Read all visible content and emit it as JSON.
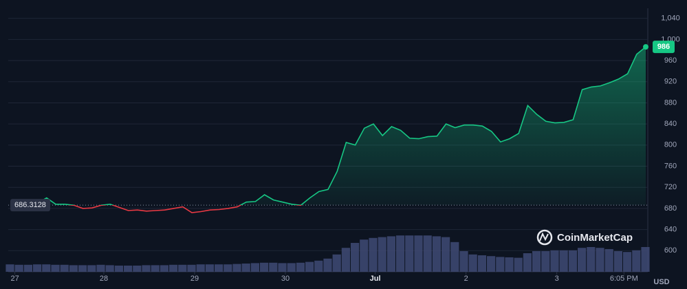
{
  "chart_data": {
    "type": "line",
    "xlim": [
      0,
      70
    ],
    "xticks": [
      {
        "value": 0.5,
        "label": "27"
      },
      {
        "value": 10.3,
        "label": "28"
      },
      {
        "value": 20.3,
        "label": "29"
      },
      {
        "value": 30.3,
        "label": "30"
      },
      {
        "value": 40.2,
        "label": "Jul"
      },
      {
        "value": 50.2,
        "label": "2"
      },
      {
        "value": 60.2,
        "label": "3"
      },
      {
        "value": 67.6,
        "label": "6:05 PM"
      }
    ],
    "ylim": [
      560,
      1050
    ],
    "yticks": [
      600,
      640,
      680,
      720,
      760,
      800,
      840,
      880,
      920,
      960,
      {
        "value": 1000,
        "label": "1,000"
      },
      {
        "value": 1040,
        "label": "1,040"
      }
    ],
    "y2lim": [
      0,
      100
    ],
    "grid": true,
    "baseline": 686.3128,
    "currency": "USD",
    "watermark": "CoinMarketCap",
    "series": [
      {
        "color": "#16c784",
        "below_color": "#ea3943",
        "values": [
          690,
          690,
          689,
          690,
          700,
          688,
          688,
          686,
          680,
          681,
          686,
          688,
          682,
          676,
          677,
          675,
          676,
          677,
          680,
          683,
          672,
          674,
          677,
          678,
          680,
          683,
          692,
          693,
          706,
          696,
          692,
          688,
          686,
          700,
          712,
          716,
          750,
          805,
          800,
          832,
          840,
          818,
          835,
          828,
          813,
          812,
          816,
          817,
          840,
          833,
          838,
          838,
          836,
          826,
          806,
          812,
          822,
          875,
          858,
          845,
          842,
          843,
          848,
          905,
          910,
          912,
          918,
          925,
          935,
          972,
          986
        ]
      },
      {
        "axis": "y2",
        "color": "#3f4a74",
        "values": [
          18,
          17,
          17,
          18,
          18,
          17,
          17,
          16,
          16,
          16,
          17,
          16,
          15,
          15,
          15,
          16,
          16,
          16,
          17,
          17,
          17,
          18,
          18,
          18,
          18,
          19,
          20,
          21,
          22,
          22,
          21,
          21,
          22,
          24,
          27,
          32,
          42,
          58,
          70,
          78,
          82,
          84,
          86,
          88,
          88,
          88,
          88,
          86,
          84,
          72,
          50,
          42,
          40,
          38,
          36,
          35,
          34,
          45,
          50,
          50,
          52,
          52,
          52,
          58,
          60,
          58,
          55,
          50,
          48,
          52,
          60
        ]
      }
    ]
  }
}
